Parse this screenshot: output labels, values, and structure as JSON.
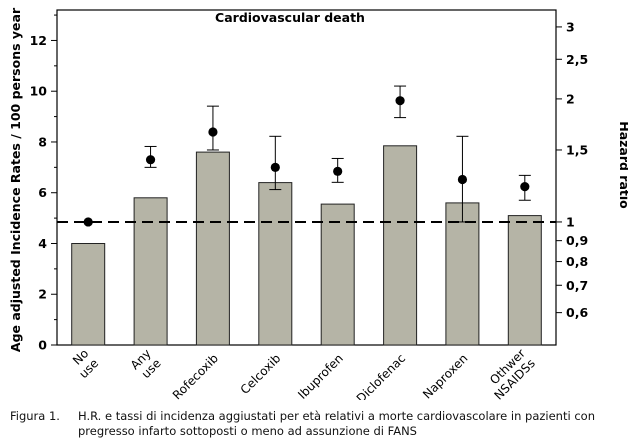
{
  "chart_data": {
    "type": "bar",
    "title": "Cardiovascular death",
    "ylabel": "Age adjusted Incidence Rates / 100 persons year",
    "y2label": "Hazard ratio",
    "categories": [
      "No use",
      "Any use",
      "Rofecoxib",
      "Celcoxib",
      "Ibuprofen",
      "Diclofenac",
      "Naproxen",
      "Othwer NSAIDSs"
    ],
    "ylim": [
      0,
      13.2
    ],
    "yticks": [
      0,
      2,
      4,
      6,
      8,
      10,
      12
    ],
    "values": [
      4.0,
      5.8,
      7.6,
      6.4,
      5.55,
      7.85,
      5.6,
      5.1
    ],
    "hazard_ratio": {
      "scale": "log",
      "lim": [
        0.5,
        3.3
      ],
      "ticks": [
        {
          "value": 0.6,
          "label": "0,6"
        },
        {
          "value": 0.7,
          "label": "0,7"
        },
        {
          "value": 0.8,
          "label": "0,8"
        },
        {
          "value": 0.9,
          "label": "0,9"
        },
        {
          "value": 1,
          "label": "1"
        },
        {
          "value": 1.5,
          "label": "1,5"
        },
        {
          "value": 2,
          "label": "2"
        },
        {
          "value": 2.5,
          "label": "2,5"
        },
        {
          "value": 3,
          "label": "3"
        }
      ],
      "points": [
        {
          "hr": 1.0,
          "low": null,
          "high": null
        },
        {
          "hr": 1.42,
          "low": 1.36,
          "high": 1.53
        },
        {
          "hr": 1.66,
          "low": 1.5,
          "high": 1.92
        },
        {
          "hr": 1.36,
          "low": 1.2,
          "high": 1.62
        },
        {
          "hr": 1.33,
          "low": 1.25,
          "high": 1.43
        },
        {
          "hr": 1.98,
          "low": 1.8,
          "high": 2.15
        },
        {
          "hr": 1.27,
          "low": 1.0,
          "high": 1.62
        },
        {
          "hr": 1.22,
          "low": 1.13,
          "high": 1.3
        }
      ]
    },
    "reference_line": 1,
    "colors": {
      "bar": "#b5b4a6",
      "bar_edge": "#222222",
      "point": "#000000",
      "text": "#000000"
    }
  },
  "caption": {
    "label": "Figura 1.",
    "line1": "H.R. e tassi di incidenza aggiustati per età relativi a morte cardiovascolare in pazienti con",
    "line2": "pregresso infarto sottoposti o meno ad assunzione di FANS"
  }
}
